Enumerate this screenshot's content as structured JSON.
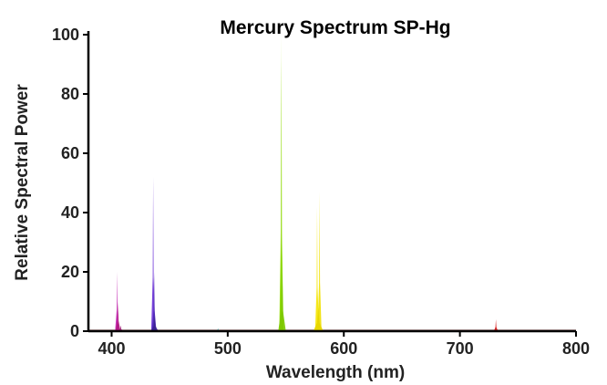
{
  "chart_data": {
    "type": "line",
    "title": "Mercury Spectrum SP-Hg",
    "xlabel": "Wavelength (nm)",
    "ylabel": "Relative Spectral Power",
    "xlim": [
      380,
      800
    ],
    "ylim": [
      0,
      100
    ],
    "xticks": [
      400,
      500,
      600,
      700,
      800
    ],
    "yticks": [
      0,
      20,
      40,
      60,
      80,
      100
    ],
    "grid": false,
    "series": [
      {
        "peaks": [
          {
            "x": 404.7,
            "y": 20,
            "width": 1.2,
            "color": "#c020b0"
          },
          {
            "x": 405.5,
            "y": 10,
            "width": 2.0,
            "color": "#b01880"
          },
          {
            "x": 407.8,
            "y": 2,
            "width": 2.0,
            "color": "#9a1470"
          },
          {
            "x": 435.8,
            "y": 52,
            "width": 1.0,
            "color": "#6a30d8"
          },
          {
            "x": 436.6,
            "y": 20,
            "width": 1.8,
            "color": "#4a28b0"
          },
          {
            "x": 437.0,
            "y": 5,
            "width": 3.0,
            "color": "#3a2090"
          },
          {
            "x": 491.6,
            "y": 1,
            "width": 2.0,
            "color": "#30a0a0"
          },
          {
            "x": 546.1,
            "y": 100,
            "width": 1.0,
            "color": "#b8ec40"
          },
          {
            "x": 546.3,
            "y": 91,
            "width": 1.6,
            "color": "#86d400"
          },
          {
            "x": 546.8,
            "y": 20,
            "width": 3.0,
            "color": "#7cc800"
          },
          {
            "x": 577.0,
            "y": 42,
            "width": 1.4,
            "color": "#f5e600"
          },
          {
            "x": 579.1,
            "y": 47,
            "width": 1.4,
            "color": "#f0e000"
          },
          {
            "x": 578.0,
            "y": 8,
            "width": 4.0,
            "color": "#e6d400"
          },
          {
            "x": 731.0,
            "y": 4,
            "width": 1.6,
            "color": "#d01010"
          }
        ]
      }
    ],
    "axis_color": "#000000",
    "baseline_color": "#6b2a2a"
  }
}
